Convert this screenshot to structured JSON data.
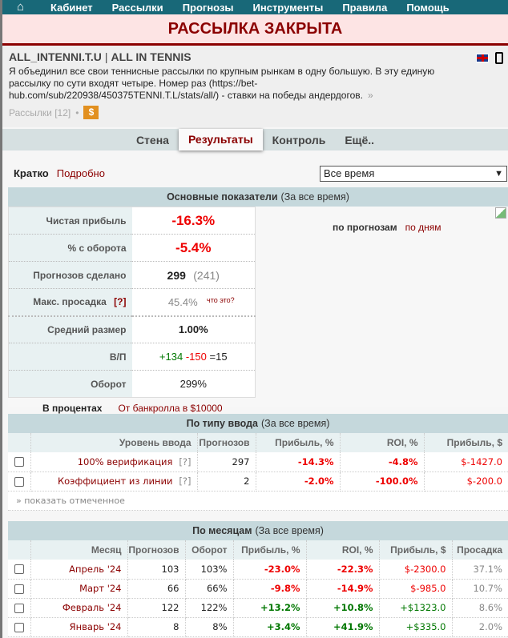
{
  "nav": {
    "home_icon": "home-icon",
    "items": [
      "Кабинет",
      "Рассылки",
      "Прогнозы",
      "Инструменты",
      "Правила",
      "Помощь"
    ]
  },
  "banner": "РАССЫЛКА ЗАКРЫТА",
  "header": {
    "login": "ALL_INTENNI.T.U",
    "sep": "|",
    "name": "ALL IN TENNIS",
    "description": "Я объединил все свои теннисные рассылки по крупным рынкам в одну большую. В эту единую рассылку по сути входят четыре. Номер раз (https://bet-hub.com/sub/220938/450375TENNI.T.L/stats/all/) - ставки на победы андердогов.",
    "more": "»",
    "subs": "Рассылки [12]",
    "dot": "•",
    "paid": "$"
  },
  "tabs": [
    "Стена",
    "Результаты",
    "Контроль",
    "Ещё.."
  ],
  "views": {
    "short": "Кратко",
    "detailed": "Подробно"
  },
  "period": "Все время",
  "main": {
    "title": "Основные показатели",
    "period": "(За все время)",
    "net_label": "Чистая прибыль",
    "net": "-16.3%",
    "turn_pct_label": "% с оборота",
    "turn_pct": "-5.4%",
    "made_label": "Прогнозов сделано",
    "made": "299",
    "made_extra": "(241)",
    "dd_label": "Макс. просадка",
    "dd_help": "[?]",
    "dd": "45.4%",
    "dd_what": "что это?",
    "avg_label": "Средний размер",
    "avg": "1.00%",
    "wl_label": "В/П",
    "wins": "+134",
    "losses": "-150",
    "draws": "=15",
    "turnover_label": "Оборот",
    "turnover": "299%",
    "pct_mode": "В процентах",
    "bank_mode": "От банкролла в $10000",
    "chart_by_tips": "по прогнозам",
    "chart_by_days": "по дням"
  },
  "by_type": {
    "title": "По типу ввода",
    "period": "(За все время)",
    "columns": [
      "Уровень ввода",
      "Прогнозов",
      "Прибыль, %",
      "ROI, %",
      "Прибыль, $"
    ],
    "rows": [
      [
        "100% верификация",
        "297",
        "-14.3%",
        "-4.8%",
        "$-1427.0"
      ],
      [
        "Коэффициент из линии",
        "2",
        "-2.0%",
        "-100.0%",
        "$-200.0"
      ]
    ],
    "help": "[?]",
    "show_checked": "» показать отмеченное"
  },
  "by_month": {
    "title": "По месяцам",
    "period": "(За все время)",
    "columns": [
      "Месяц",
      "Прогнозов",
      "Оборот",
      "Прибыль, %",
      "ROI, %",
      "Прибыль, $",
      "Просадка"
    ],
    "rows": [
      [
        "Апрель '24",
        "103",
        "103%",
        "-23.0%",
        "-22.3%",
        "$-2300.0",
        "37.1%"
      ],
      [
        "Март '24",
        "66",
        "66%",
        "-9.8%",
        "-14.9%",
        "$-985.0",
        "10.7%"
      ],
      [
        "Февраль '24",
        "122",
        "122%",
        "+13.2%",
        "+10.8%",
        "+$1323.0",
        "8.6%"
      ],
      [
        "Январь '24",
        "8",
        "8%",
        "+3.4%",
        "+41.9%",
        "+$335.0",
        "2.0%"
      ]
    ]
  },
  "colors": {
    "nav": "#186878",
    "negative": "#e00000",
    "positive": "#007700",
    "accent": "#8b0000"
  }
}
